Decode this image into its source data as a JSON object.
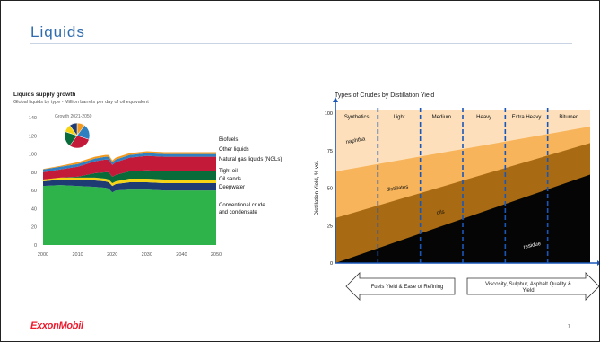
{
  "slide": {
    "title": "Liquids",
    "logo_text": "ExxonMobil",
    "page_number": "7"
  },
  "chart_data": [
    {
      "type": "area",
      "title": "Liquids supply growth",
      "subtitle": "Global liquids by type - Million barrels per day of oil equivalent",
      "x": [
        2000,
        2005,
        2010,
        2015,
        2018,
        2019,
        2020,
        2021,
        2025,
        2030,
        2035,
        2040,
        2045,
        2050
      ],
      "ylim": [
        0,
        140
      ],
      "yticks": [
        0,
        20,
        40,
        60,
        80,
        100,
        120,
        140
      ],
      "xticks": [
        2000,
        2010,
        2020,
        2030,
        2040,
        2050
      ],
      "series": [
        {
          "name": "Conventional crude and condensate",
          "color": "#2db34a",
          "values": [
            65,
            66,
            65,
            64,
            63,
            62,
            58,
            60,
            61,
            61,
            60,
            60,
            60,
            60
          ]
        },
        {
          "name": "Deepwater",
          "color": "#1f3b73",
          "values": [
            5,
            6,
            6,
            7,
            7,
            7,
            7,
            7,
            8,
            8,
            8,
            8,
            8,
            8
          ]
        },
        {
          "name": "Oil sands",
          "color": "#f5d416",
          "values": [
            2,
            2,
            3,
            3,
            3,
            3,
            3,
            3,
            4,
            4,
            4,
            4,
            4,
            4
          ]
        },
        {
          "name": "Tight oil",
          "color": "#0a6b3a",
          "values": [
            0,
            0,
            1,
            5,
            7,
            8,
            7,
            7,
            8,
            9,
            9,
            9,
            9,
            9
          ]
        },
        {
          "name": "Natural gas liquids (NGLs)",
          "color": "#c41a3a",
          "values": [
            8,
            9,
            11,
            13,
            14,
            14,
            13,
            14,
            15,
            16,
            16,
            16,
            16,
            16
          ]
        },
        {
          "name": "Other liquids",
          "color": "#2f7fc1",
          "values": [
            3,
            3,
            3,
            3,
            3,
            3,
            3,
            3,
            3,
            3,
            3,
            3,
            3,
            3
          ]
        },
        {
          "name": "Biofuels",
          "color": "#f39a1e",
          "values": [
            0.5,
            1,
            2,
            2,
            2,
            2,
            2,
            2,
            2,
            2,
            2,
            2,
            2,
            2
          ]
        }
      ],
      "inset_pie": {
        "label": "Growth 2021-2050",
        "slices": [
          {
            "name": "Biofuels",
            "color": "#f39a1e",
            "value": 10
          },
          {
            "name": "Other liquids",
            "color": "#2f7fc1",
            "value": 20
          },
          {
            "name": "Natural gas liquids (NGLs)",
            "color": "#c41a3a",
            "value": 30
          },
          {
            "name": "Tight oil",
            "color": "#0a6b3a",
            "value": 20
          },
          {
            "name": "Oil sands",
            "color": "#f5d416",
            "value": 10
          },
          {
            "name": "Deepwater",
            "color": "#1f3b73",
            "value": 10
          }
        ]
      }
    },
    {
      "type": "area",
      "title": "Types of Crudes by Distillation Yield",
      "ylabel": "Distillation Yield, % vol.",
      "ylim": [
        0,
        100
      ],
      "yticks": [
        0,
        25,
        50,
        75,
        100
      ],
      "categories": [
        "Synthetics",
        "Light",
        "Medium",
        "Heavy",
        "Extra Heavy",
        "Bitumen"
      ],
      "x": [
        0,
        1
      ],
      "series": [
        {
          "name": "residue",
          "color": "#050505",
          "values": [
            0,
            59
          ]
        },
        {
          "name": "oils",
          "color": "#a86a12",
          "values": [
            30,
            80
          ]
        },
        {
          "name": "distillates",
          "color": "#f7b45a",
          "values": [
            61,
            91
          ]
        },
        {
          "name": "naphtha",
          "color": "#fde0bb",
          "values": [
            100,
            100
          ]
        }
      ],
      "arrows": {
        "left_label": "Fuels Yield & Ease of Refining",
        "right_label": "Viscosity, Sulphur, Asphalt Quality & Yield"
      }
    }
  ]
}
